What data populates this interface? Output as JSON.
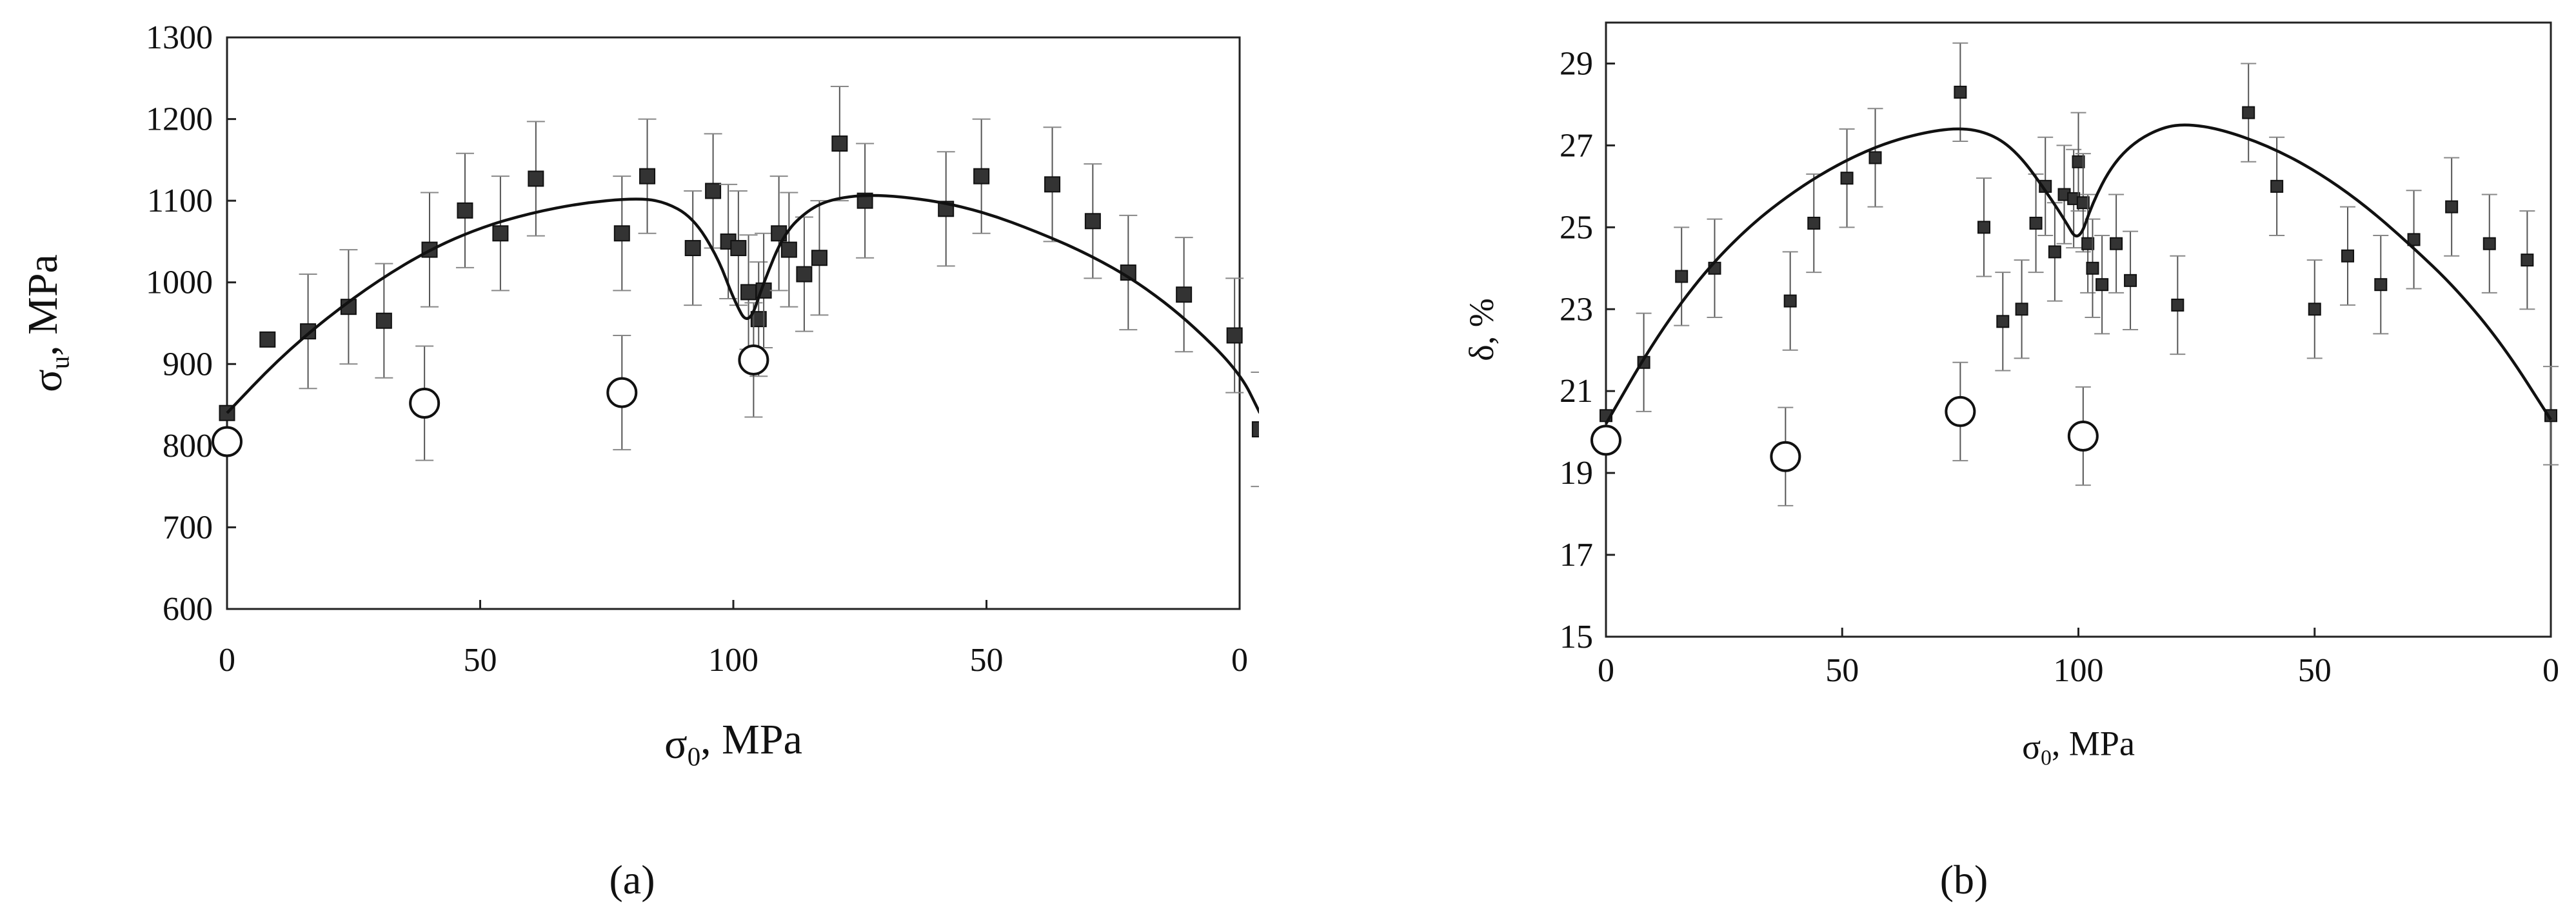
{
  "chart_data": [
    {
      "type": "scatter",
      "panel_label": "(a)",
      "xlabel": {
        "symbol": "σ",
        "sub": "0",
        "unit": ", MPa"
      },
      "ylabel": {
        "symbol": "σ",
        "sub": "u",
        "unit": ", MPa"
      },
      "x_ticks": [
        "0",
        "50",
        "100",
        "50",
        "0"
      ],
      "x_tick_pos": [
        0,
        50,
        100,
        150,
        200
      ],
      "xlim": [
        0,
        200
      ],
      "y_ticks": [
        "600",
        "700",
        "800",
        "900",
        "1000",
        "1100",
        "1200",
        "1300"
      ],
      "ylim": [
        600,
        1300
      ],
      "series": [
        {
          "marker": "filled-square",
          "points": [
            [
              0,
              840,
              0
            ],
            [
              8,
              930,
              0
            ],
            [
              16,
              940,
              70
            ],
            [
              24,
              970,
              70
            ],
            [
              31,
              953,
              70
            ],
            [
              40,
              1040,
              70
            ],
            [
              47,
              1088,
              70
            ],
            [
              54,
              1060,
              70
            ],
            [
              61,
              1127,
              70
            ],
            [
              78,
              1060,
              70
            ],
            [
              83,
              1130,
              70
            ],
            [
              92,
              1042,
              70
            ],
            [
              96,
              1112,
              70
            ],
            [
              99,
              1050,
              70
            ],
            [
              101,
              1042,
              70
            ],
            [
              103,
              988,
              70
            ],
            [
              105,
              955,
              70
            ],
            [
              106,
              990,
              70
            ],
            [
              109,
              1060,
              70
            ],
            [
              111,
              1040,
              70
            ],
            [
              114,
              1010,
              70
            ],
            [
              117,
              1030,
              70
            ],
            [
              121,
              1170,
              70
            ],
            [
              126,
              1100,
              70
            ],
            [
              142,
              1090,
              70
            ],
            [
              149,
              1130,
              70
            ],
            [
              163,
              1120,
              70
            ],
            [
              171,
              1075,
              70
            ],
            [
              178,
              1012,
              70
            ],
            [
              189,
              985,
              70
            ],
            [
              199,
              935,
              70
            ],
            [
              204,
              820,
              70
            ]
          ]
        },
        {
          "marker": "open-circle",
          "points": [
            [
              0,
              805,
              0
            ],
            [
              39,
              852,
              70
            ],
            [
              78,
              865,
              70
            ],
            [
              104,
              905,
              70
            ]
          ]
        },
        {
          "marker": "line",
          "points": [
            [
              0,
              840
            ],
            [
              10,
              905
            ],
            [
              20,
              958
            ],
            [
              30,
              1003
            ],
            [
              40,
              1040
            ],
            [
              50,
              1067
            ],
            [
              60,
              1085
            ],
            [
              70,
              1097
            ],
            [
              80,
              1103
            ],
            [
              86,
              1100
            ],
            [
              92,
              1080
            ],
            [
              97,
              1030
            ],
            [
              100,
              980
            ],
            [
              103,
              945
            ],
            [
              106,
              1000
            ],
            [
              110,
              1060
            ],
            [
              115,
              1090
            ],
            [
              120,
              1103
            ],
            [
              128,
              1108
            ],
            [
              140,
              1100
            ],
            [
              150,
              1085
            ],
            [
              160,
              1062
            ],
            [
              170,
              1035
            ],
            [
              180,
              1000
            ],
            [
              190,
              952
            ],
            [
              200,
              890
            ],
            [
              204,
              840
            ]
          ]
        }
      ]
    },
    {
      "type": "scatter",
      "panel_label": "(b)",
      "xlabel": {
        "symbol": "σ",
        "sub": "0",
        "unit": ", MPa"
      },
      "ylabel": {
        "symbol": "δ",
        "sub": "",
        "unit": ", %"
      },
      "x_ticks": [
        "0",
        "50",
        "100",
        "50",
        "0"
      ],
      "x_tick_pos": [
        0,
        50,
        100,
        150,
        200
      ],
      "xlim": [
        0,
        200
      ],
      "y_ticks": [
        "15",
        "17",
        "19",
        "21",
        "23",
        "25",
        "27",
        "29"
      ],
      "ylim": [
        15,
        30
      ],
      "series": [
        {
          "marker": "filled-square",
          "points": [
            [
              0,
              20.4,
              0
            ],
            [
              8,
              21.7,
              1.2
            ],
            [
              16,
              23.8,
              1.2
            ],
            [
              23,
              24.0,
              1.2
            ],
            [
              39,
              23.2,
              1.2
            ],
            [
              44,
              25.1,
              1.2
            ],
            [
              51,
              26.2,
              1.2
            ],
            [
              57,
              26.7,
              1.2
            ],
            [
              75,
              28.3,
              1.2
            ],
            [
              80,
              25.0,
              1.2
            ],
            [
              84,
              22.7,
              1.2
            ],
            [
              88,
              23.0,
              1.2
            ],
            [
              91,
              25.1,
              1.2
            ],
            [
              93,
              26.0,
              1.2
            ],
            [
              95,
              24.4,
              1.2
            ],
            [
              97,
              25.8,
              1.2
            ],
            [
              99,
              25.7,
              1.2
            ],
            [
              100,
              26.6,
              1.2
            ],
            [
              101,
              25.6,
              1.2
            ],
            [
              102,
              24.6,
              1.2
            ],
            [
              103,
              24.0,
              1.2
            ],
            [
              105,
              23.6,
              1.2
            ],
            [
              108,
              24.6,
              1.2
            ],
            [
              111,
              23.7,
              1.2
            ],
            [
              121,
              23.1,
              1.2
            ],
            [
              136,
              27.8,
              1.2
            ],
            [
              142,
              26.0,
              1.2
            ],
            [
              150,
              23.0,
              1.2
            ],
            [
              157,
              24.3,
              1.2
            ],
            [
              164,
              23.6,
              1.2
            ],
            [
              171,
              24.7,
              1.2
            ],
            [
              179,
              25.5,
              1.2
            ],
            [
              187,
              24.6,
              1.2
            ],
            [
              195,
              24.2,
              1.2
            ],
            [
              200,
              20.4,
              1.2
            ]
          ]
        },
        {
          "marker": "open-circle",
          "points": [
            [
              0,
              19.8,
              0
            ],
            [
              38,
              19.4,
              1.2
            ],
            [
              75,
              20.5,
              1.2
            ],
            [
              101,
              19.9,
              1.2
            ]
          ]
        },
        {
          "marker": "line",
          "points": [
            [
              0,
              20.2
            ],
            [
              10,
              22.2
            ],
            [
              20,
              23.8
            ],
            [
              30,
              25.0
            ],
            [
              40,
              25.9
            ],
            [
              50,
              26.6
            ],
            [
              60,
              27.1
            ],
            [
              70,
              27.38
            ],
            [
              77,
              27.42
            ],
            [
              83,
              27.2
            ],
            [
              88,
              26.7
            ],
            [
              93,
              25.9
            ],
            [
              97,
              25.2
            ],
            [
              100,
              24.6
            ],
            [
              103,
              25.6
            ],
            [
              107,
              26.5
            ],
            [
              112,
              27.1
            ],
            [
              118,
              27.45
            ],
            [
              123,
              27.52
            ],
            [
              130,
              27.4
            ],
            [
              140,
              27.0
            ],
            [
              150,
              26.4
            ],
            [
              160,
              25.6
            ],
            [
              170,
              24.6
            ],
            [
              180,
              23.5
            ],
            [
              190,
              22.1
            ],
            [
              200,
              20.3
            ]
          ]
        }
      ]
    }
  ]
}
